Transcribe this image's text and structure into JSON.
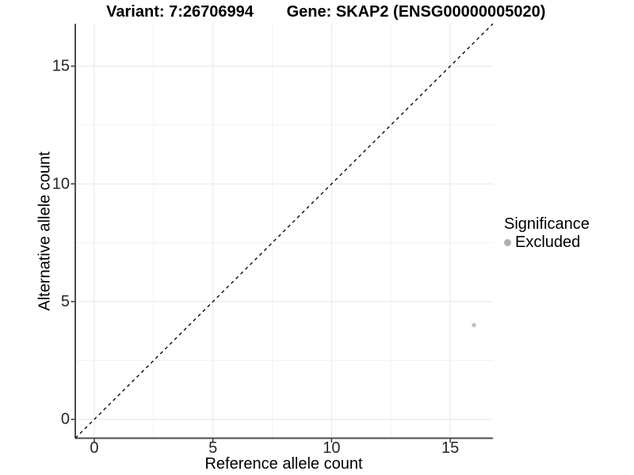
{
  "chart_data": {
    "type": "scatter",
    "title_left": "Variant: 7:26706994",
    "title_right": "Gene: SKAP2 (ENSG00000005020)",
    "xlabel": "Reference allele count",
    "ylabel": "Alternative allele count",
    "x_axis": {
      "range": [
        -0.8,
        16.8
      ],
      "ticks": [
        0,
        5,
        10,
        15
      ],
      "minor_ticks": [
        2.5,
        7.5,
        12.5
      ]
    },
    "y_axis": {
      "range": [
        -0.8,
        16.8
      ],
      "ticks": [
        0,
        5,
        10,
        15
      ],
      "minor_ticks": [
        2.5,
        7.5,
        12.5
      ]
    },
    "grid": "major-and-minor",
    "reference_line": {
      "type": "identity",
      "style": "dashed",
      "from": [
        -0.8,
        -0.8
      ],
      "to": [
        16.8,
        16.8
      ]
    },
    "series": [
      {
        "name": "Excluded",
        "color": "#c2c2c2",
        "point_radius": 2.8,
        "points": [
          {
            "x": 16,
            "y": 4
          }
        ]
      }
    ],
    "legend": {
      "title": "Significance",
      "position": "right",
      "items": [
        {
          "label": "Excluded",
          "color": "#b0b0b0"
        }
      ]
    },
    "colors": {
      "background": "#ffffff",
      "grid_major": "#e7e7e7",
      "grid_minor": "#f1f1f1",
      "axis_line": "#4d4d4d",
      "tick_mark": "#333333",
      "tick_label": "#262626",
      "identity_line": "#0a0a0a",
      "text": "#000000"
    }
  }
}
